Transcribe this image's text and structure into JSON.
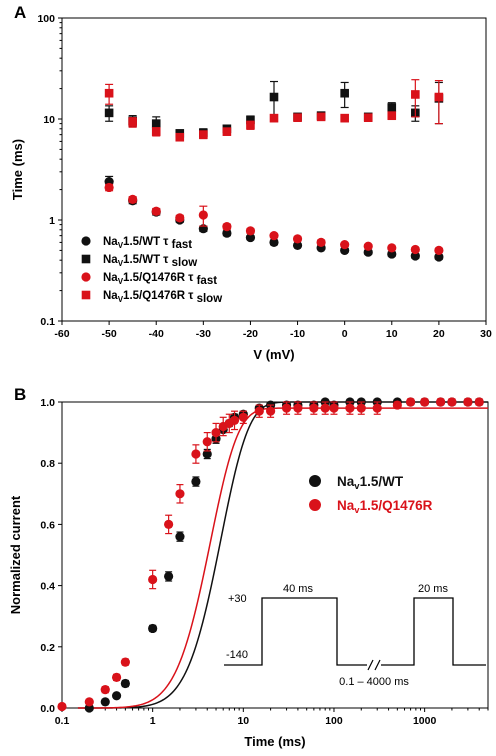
{
  "colors": {
    "wt": "#111111",
    "mut": "#d9121a"
  },
  "chart_data": [
    {
      "panel": "A",
      "type": "scatter",
      "xlabel": "V (mV)",
      "ylabel": "Time (ms)",
      "xlim": [
        -60,
        30
      ],
      "ylim": [
        0.1,
        100
      ],
      "yscale": "log",
      "xticks": [
        -60,
        -50,
        -40,
        -30,
        -20,
        -10,
        0,
        10,
        20,
        30
      ],
      "yticks": [
        {
          "v": 0.1,
          "label": "0.1"
        },
        {
          "v": 1,
          "label": "1"
        },
        {
          "v": 10,
          "label": "10"
        },
        {
          "v": 100,
          "label": "100"
        }
      ],
      "legend_position": "lower-left",
      "series": [
        {
          "name_main": "Na",
          "name_sub": "V",
          "name_rest": "1.5/WT τ",
          "name_tail": "fast",
          "color": "wt",
          "marker": "circle",
          "x": [
            -50,
            -45,
            -40,
            -35,
            -30,
            -25,
            -20,
            -15,
            -10,
            -5,
            0,
            5,
            10,
            15,
            20
          ],
          "y": [
            2.4,
            1.55,
            1.2,
            1.0,
            0.82,
            0.74,
            0.67,
            0.6,
            0.56,
            0.53,
            0.5,
            0.48,
            0.46,
            0.44,
            0.43
          ],
          "err": [
            0.3,
            0.1,
            0.08,
            0.05,
            0.05,
            0.04,
            0.03,
            0.03,
            0.02,
            0.02,
            0.02,
            0.02,
            0.02,
            0.02,
            0.02
          ]
        },
        {
          "name_main": "Na",
          "name_sub": "V",
          "name_rest": "1.5/WT τ",
          "name_tail": "slow",
          "color": "wt",
          "marker": "square",
          "x": [
            -50,
            -45,
            -40,
            -35,
            -30,
            -25,
            -20,
            -15,
            -10,
            -5,
            0,
            5,
            10,
            15,
            20
          ],
          "y": [
            11.5,
            9.6,
            9.0,
            7.2,
            7.3,
            8.0,
            9.8,
            16.5,
            10.5,
            10.8,
            18.0,
            10.5,
            13.0,
            11.5,
            16.0
          ],
          "err": [
            2.0,
            1.2,
            1.5,
            0.6,
            0.7,
            0.7,
            0.9,
            7.0,
            0.8,
            0.8,
            5.0,
            0.8,
            1.5,
            2.0,
            7.0
          ]
        },
        {
          "name_main": "Na",
          "name_sub": "V",
          "name_rest": "1.5/Q1476R τ",
          "name_tail": "fast",
          "color": "mut",
          "marker": "circle",
          "x": [
            -50,
            -45,
            -40,
            -35,
            -30,
            -25,
            -20,
            -15,
            -10,
            -5,
            0,
            5,
            10,
            15,
            20
          ],
          "y": [
            2.1,
            1.6,
            1.22,
            1.05,
            1.12,
            0.86,
            0.78,
            0.7,
            0.65,
            0.6,
            0.57,
            0.55,
            0.53,
            0.51,
            0.5
          ],
          "err": [
            0.15,
            0.1,
            0.08,
            0.06,
            0.25,
            0.05,
            0.04,
            0.03,
            0.03,
            0.03,
            0.02,
            0.02,
            0.02,
            0.02,
            0.02
          ]
        },
        {
          "name_main": "Na",
          "name_sub": "V",
          "name_rest": "1.5/Q1476R τ",
          "name_tail": "slow",
          "color": "mut",
          "marker": "square",
          "x": [
            -50,
            -45,
            -40,
            -35,
            -30,
            -25,
            -20,
            -15,
            -10,
            -5,
            0,
            5,
            10,
            15,
            20
          ],
          "y": [
            18.0,
            9.3,
            7.5,
            6.6,
            7.0,
            7.5,
            8.7,
            10.2,
            10.3,
            10.5,
            10.2,
            10.3,
            10.8,
            17.5,
            16.5
          ],
          "err": [
            4.0,
            1.0,
            0.7,
            0.5,
            0.6,
            0.6,
            0.8,
            0.8,
            0.8,
            0.8,
            0.8,
            0.8,
            0.9,
            7.0,
            7.5
          ]
        }
      ]
    },
    {
      "panel": "B",
      "type": "scatter",
      "xlabel": "Time (ms)",
      "ylabel": "Normalized current",
      "xscale": "log",
      "xlim": [
        0.1,
        5000
      ],
      "ylim": [
        0,
        1.0
      ],
      "xticks": [
        {
          "v": 0.1,
          "label": "0.1"
        },
        {
          "v": 1,
          "label": "1"
        },
        {
          "v": 10,
          "label": "10"
        },
        {
          "v": 100,
          "label": "100"
        },
        {
          "v": 1000,
          "label": "1000"
        }
      ],
      "yticks": [
        0.0,
        0.2,
        0.4,
        0.6,
        0.8,
        1.0
      ],
      "legend_position": "middle-right",
      "series": [
        {
          "name_main": "Na",
          "name_sub": "v",
          "name_rest": "1.5/WT",
          "color": "wt",
          "x": [
            0.2,
            0.3,
            0.4,
            0.5,
            1,
            1.5,
            2,
            3,
            4,
            5,
            6,
            7,
            8,
            10,
            15,
            20,
            30,
            40,
            60,
            80,
            100,
            150,
            200,
            300,
            500,
            700,
            1000,
            1500,
            2000,
            3000,
            4000
          ],
          "y": [
            0.0,
            0.02,
            0.04,
            0.08,
            0.26,
            0.43,
            0.56,
            0.74,
            0.83,
            0.88,
            0.91,
            0.93,
            0.95,
            0.96,
            0.98,
            0.99,
            0.99,
            0.99,
            0.99,
            1.0,
            0.99,
            1.0,
            1.0,
            1.0,
            1.0,
            1.0,
            1.0,
            1.0,
            1.0,
            1.0,
            1.0
          ],
          "err": [
            0.005,
            0.005,
            0.005,
            0.01,
            0.01,
            0.015,
            0.015,
            0.015,
            0.015,
            0.015,
            0.01,
            0.01,
            0.01,
            0.01,
            0.005,
            0.005,
            0.005,
            0.005,
            0.005,
            0.005,
            0.005,
            0.005,
            0.005,
            0.005,
            0.005,
            0.005,
            0.005,
            0.005,
            0.005,
            0.005,
            0.005
          ],
          "fit": {
            "tau": 3.2,
            "delay": 0.17,
            "amp": 1.0
          }
        },
        {
          "name_main": "Na",
          "name_sub": "v",
          "name_rest": "1.5/Q1476R",
          "color": "mut",
          "x": [
            0.1,
            0.2,
            0.3,
            0.4,
            0.5,
            1,
            1.5,
            2,
            3,
            4,
            5,
            6,
            7,
            8,
            10,
            15,
            20,
            30,
            40,
            60,
            80,
            100,
            150,
            200,
            300,
            500,
            700,
            1000,
            1500,
            2000,
            3000,
            4000
          ],
          "y": [
            0.005,
            0.02,
            0.06,
            0.1,
            0.15,
            0.42,
            0.6,
            0.7,
            0.83,
            0.87,
            0.9,
            0.92,
            0.93,
            0.94,
            0.95,
            0.97,
            0.97,
            0.98,
            0.98,
            0.98,
            0.98,
            0.98,
            0.98,
            0.98,
            0.98,
            0.99,
            1.0,
            1.0,
            1.0,
            1.0,
            1.0,
            1.0
          ],
          "err": [
            0.005,
            0.005,
            0.01,
            0.01,
            0.01,
            0.03,
            0.03,
            0.03,
            0.03,
            0.03,
            0.03,
            0.03,
            0.03,
            0.03,
            0.02,
            0.02,
            0.02,
            0.02,
            0.02,
            0.02,
            0.02,
            0.02,
            0.02,
            0.02,
            0.02,
            0.01,
            0.01,
            0.01,
            0.01,
            0.01,
            0.01,
            0.01
          ],
          "fit": {
            "tau": 2.45,
            "delay": 0.12,
            "amp": 0.98
          }
        }
      ]
    }
  ],
  "protocol": {
    "hold_label": "-140",
    "step_label": "+30",
    "p1_duration": "40 ms",
    "p2_duration": "20 ms",
    "interval_label": "0.1 – 4000 ms"
  }
}
